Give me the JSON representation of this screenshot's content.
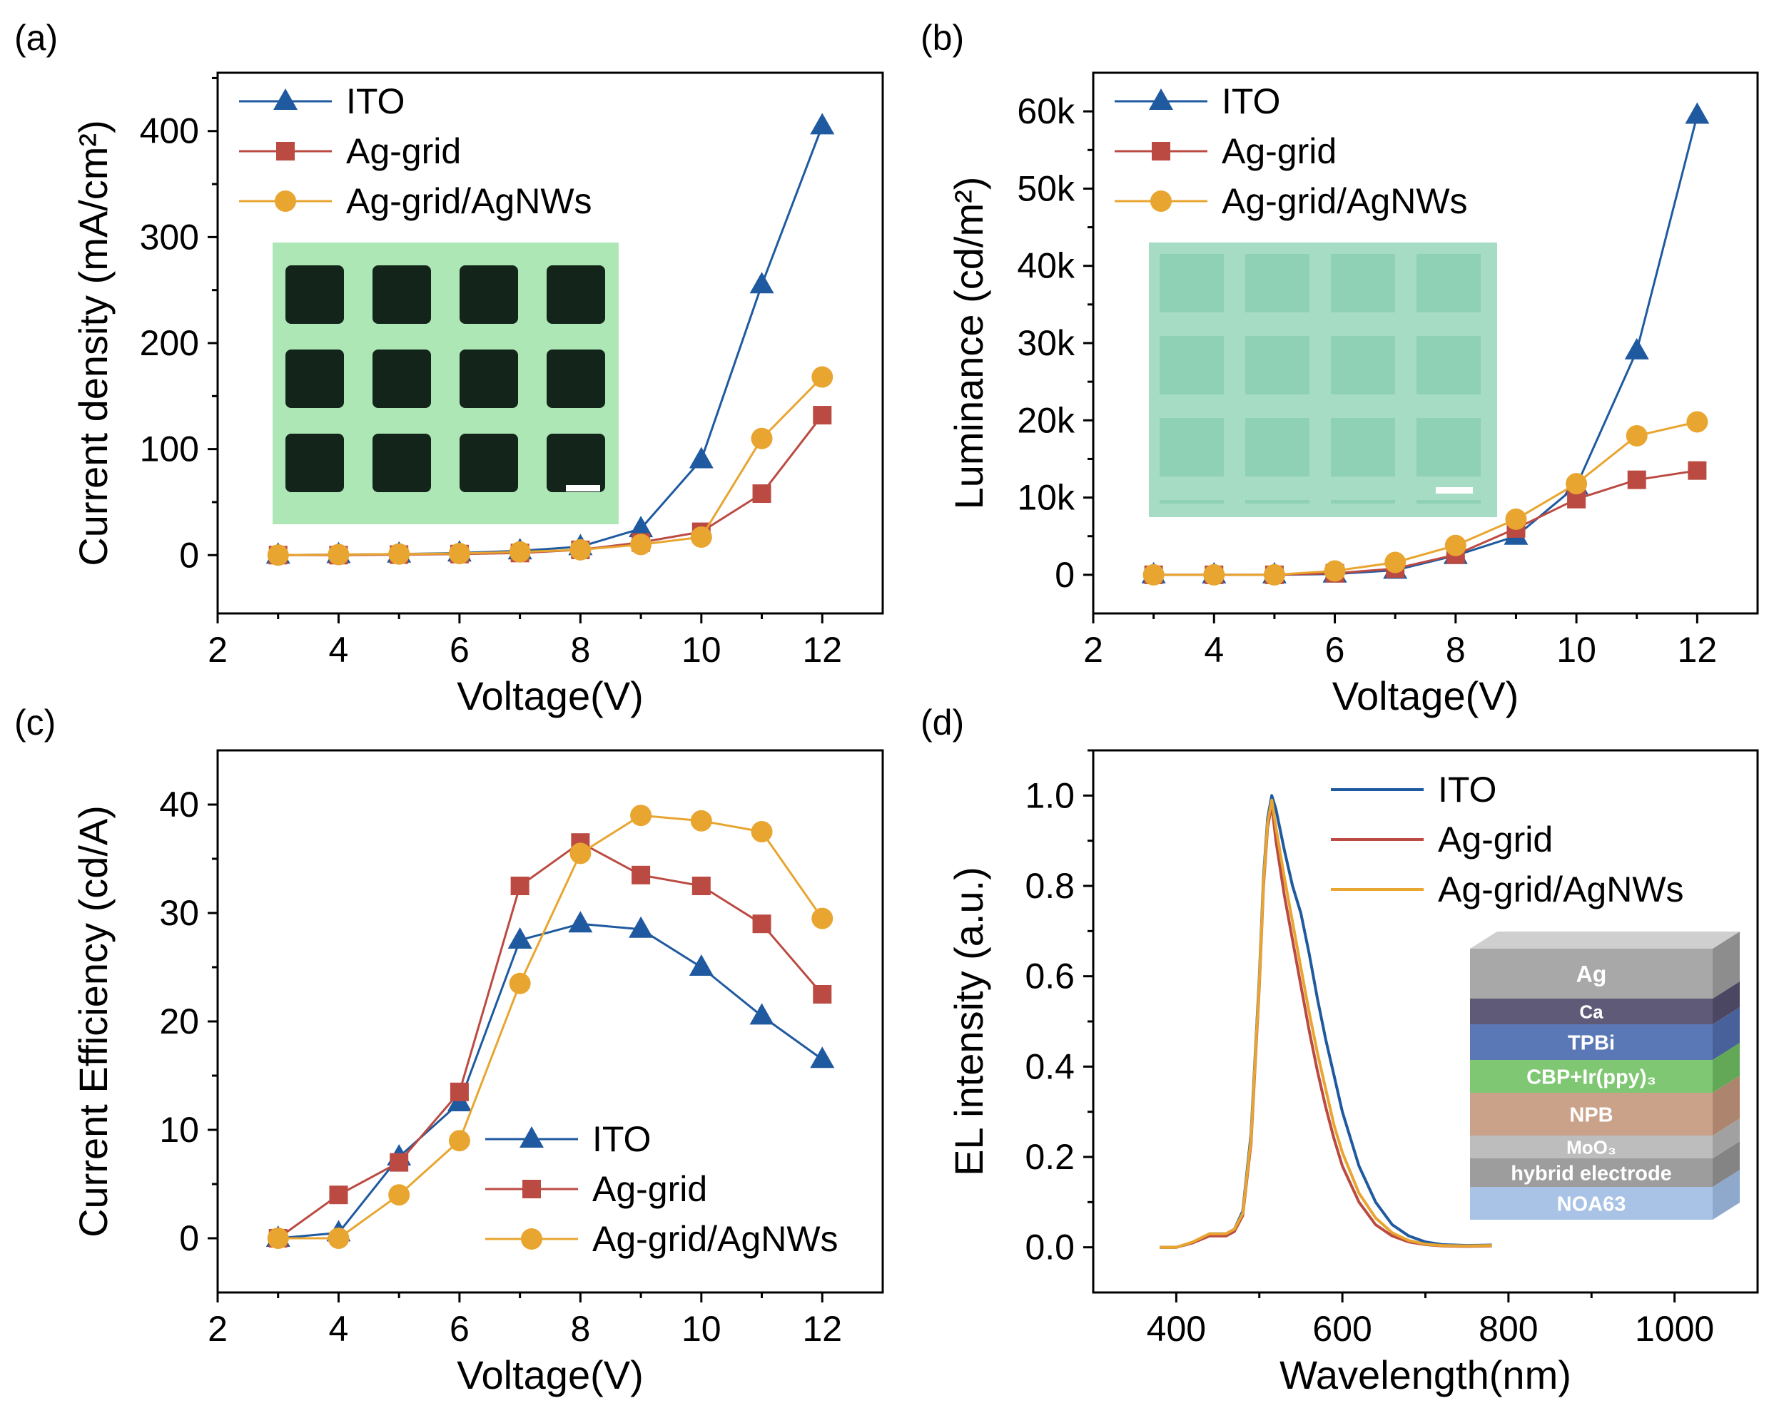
{
  "colors": {
    "ITO": "#1f5aa0",
    "Ag-grid": "#bb4a42",
    "Ag-grid/AgNWs": "#e8a530",
    "axis": "#000000",
    "inset_green_a": "#aee7b6",
    "inset_green_b": "#a7dcc4",
    "inset_dark_square": "#13241a",
    "inset_light_square": "#8fd1b4"
  },
  "chart_data": [
    {
      "id": "a",
      "panel_label": "(a)",
      "type": "line",
      "xlabel": "Voltage(V)",
      "ylabel": "Current density (mA/cm²)",
      "xlim": [
        2,
        13
      ],
      "ylim": [
        -55,
        455
      ],
      "xticks": [
        2,
        4,
        6,
        8,
        10,
        12
      ],
      "yticks": [
        0,
        100,
        200,
        300,
        400
      ],
      "ytick_labels": [
        "0",
        "100",
        "200",
        "300",
        "400"
      ],
      "legend_position": "top-left",
      "inset": "dark-grid-micrograph",
      "x": [
        3,
        4,
        5,
        6,
        7,
        8,
        9,
        10,
        11,
        12
      ],
      "series": [
        {
          "name": "ITO",
          "marker": "triangle",
          "values": [
            0,
            0.5,
            1,
            2,
            4,
            8,
            25,
            90,
            255,
            405
          ]
        },
        {
          "name": "Ag-grid",
          "marker": "square",
          "values": [
            0,
            0,
            0.5,
            1,
            2,
            5,
            12,
            22,
            58,
            132
          ]
        },
        {
          "name": "Ag-grid/AgNWs",
          "marker": "circle",
          "values": [
            0,
            0.5,
            1,
            1.5,
            3,
            5,
            10,
            17,
            110,
            168
          ]
        }
      ]
    },
    {
      "id": "b",
      "panel_label": "(b)",
      "type": "line",
      "xlabel": "Voltage(V)",
      "ylabel": "Luminance (cd/m²)",
      "xlim": [
        2,
        13
      ],
      "ylim": [
        -5000,
        65000
      ],
      "xticks": [
        2,
        4,
        6,
        8,
        10,
        12
      ],
      "yticks": [
        0,
        10000,
        20000,
        30000,
        40000,
        50000,
        60000
      ],
      "ytick_labels": [
        "0",
        "10k",
        "20k",
        "30k",
        "40k",
        "50k",
        "60k"
      ],
      "legend_position": "top-left",
      "inset": "light-grid-micrograph",
      "x": [
        3,
        4,
        5,
        6,
        7,
        8,
        9,
        10,
        11,
        12
      ],
      "series": [
        {
          "name": "ITO",
          "marker": "triangle",
          "values": [
            0,
            0,
            0,
            100,
            600,
            2500,
            5000,
            11500,
            29000,
            59500
          ]
        },
        {
          "name": "Ag-grid",
          "marker": "square",
          "values": [
            0,
            0,
            0,
            200,
            800,
            2600,
            6000,
            9800,
            12300,
            13500
          ]
        },
        {
          "name": "Ag-grid/AgNWs",
          "marker": "circle",
          "values": [
            0,
            0,
            0,
            500,
            1600,
            3800,
            7200,
            11800,
            18000,
            19800
          ]
        }
      ]
    },
    {
      "id": "c",
      "panel_label": "(c)",
      "type": "line",
      "xlabel": "Voltage(V)",
      "ylabel": "Current Efficiency (cd/A)",
      "xlim": [
        2,
        13
      ],
      "ylim": [
        -5,
        45
      ],
      "xticks": [
        2,
        4,
        6,
        8,
        10,
        12
      ],
      "yticks": [
        0,
        10,
        20,
        30,
        40
      ],
      "ytick_labels": [
        "0",
        "10",
        "20",
        "30",
        "40"
      ],
      "legend_position": "bottom-right",
      "x": [
        3,
        4,
        5,
        6,
        7,
        8,
        9,
        10,
        11,
        12
      ],
      "series": [
        {
          "name": "ITO",
          "marker": "triangle",
          "values": [
            0,
            0.5,
            7.5,
            12.5,
            27.5,
            29,
            28.5,
            25,
            20.5,
            16.5
          ]
        },
        {
          "name": "Ag-grid",
          "marker": "square",
          "values": [
            0,
            4,
            7,
            13.5,
            32.5,
            36.5,
            33.5,
            32.5,
            29,
            22.5
          ]
        },
        {
          "name": "Ag-grid/AgNWs",
          "marker": "circle",
          "values": [
            0,
            0,
            4,
            9,
            23.5,
            35.5,
            39,
            38.5,
            37.5,
            29.5
          ]
        }
      ]
    },
    {
      "id": "d",
      "panel_label": "(d)",
      "type": "line",
      "xlabel": "Wavelength(nm)",
      "ylabel": "EL intensity (a.u.)",
      "xlim": [
        300,
        1100
      ],
      "ylim": [
        -0.1,
        1.1
      ],
      "xticks": [
        400,
        600,
        800,
        1000
      ],
      "yticks": [
        0,
        0.2,
        0.4,
        0.6,
        0.8,
        1.0
      ],
      "ytick_labels": [
        "0.0",
        "0.2",
        "0.4",
        "0.6",
        "0.8",
        "1.0"
      ],
      "legend_position": "top-right",
      "inset": "device-stack",
      "stack_layers": [
        "Ag",
        "Ca",
        "TPBi",
        "CBP+Ir(ppy)₃",
        "NPB",
        "MoO₃",
        "hybrid electrode",
        "NOA63"
      ],
      "x": [
        380,
        400,
        420,
        440,
        460,
        470,
        480,
        490,
        500,
        505,
        510,
        515,
        520,
        530,
        540,
        550,
        560,
        570,
        580,
        590,
        600,
        620,
        640,
        660,
        680,
        700,
        720,
        750,
        780
      ],
      "series": [
        {
          "name": "ITO",
          "values": [
            0,
            0,
            0.01,
            0.03,
            0.03,
            0.04,
            0.08,
            0.25,
            0.6,
            0.82,
            0.95,
            1.0,
            0.97,
            0.88,
            0.8,
            0.74,
            0.65,
            0.55,
            0.46,
            0.38,
            0.3,
            0.18,
            0.1,
            0.05,
            0.025,
            0.012,
            0.006,
            0.004,
            0.005
          ]
        },
        {
          "name": "Ag-grid",
          "values": [
            0,
            0,
            0.01,
            0.025,
            0.025,
            0.035,
            0.07,
            0.23,
            0.58,
            0.8,
            0.93,
            0.98,
            0.9,
            0.78,
            0.68,
            0.58,
            0.48,
            0.39,
            0.31,
            0.24,
            0.18,
            0.1,
            0.05,
            0.025,
            0.012,
            0.006,
            0.003,
            0.002,
            0.003
          ]
        },
        {
          "name": "Ag-grid/AgNWs",
          "values": [
            0,
            0,
            0.012,
            0.03,
            0.03,
            0.04,
            0.075,
            0.24,
            0.59,
            0.81,
            0.94,
            0.99,
            0.93,
            0.82,
            0.72,
            0.62,
            0.52,
            0.43,
            0.35,
            0.27,
            0.21,
            0.12,
            0.065,
            0.032,
            0.015,
            0.007,
            0.004,
            0.003,
            0.004
          ]
        }
      ]
    }
  ]
}
